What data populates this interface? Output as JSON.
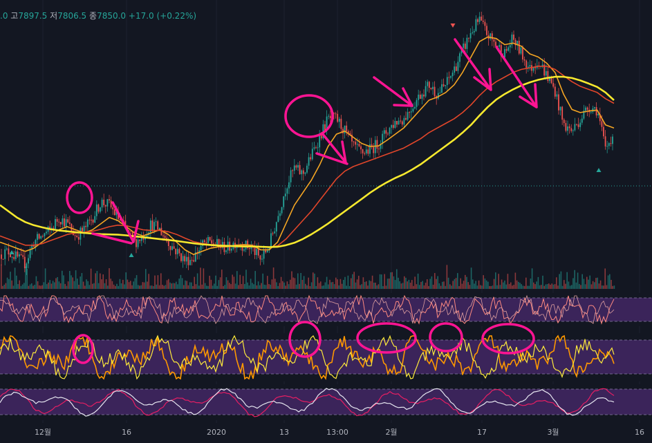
{
  "ohlc_legend": {
    "open_fragment": ".0",
    "high_label": "고",
    "high_value": "7897.5",
    "low_label": "저",
    "low_value": "7806.5",
    "close_label": "종",
    "close_value": "7850.0",
    "change": "+17.0 (+0.22%)"
  },
  "chart_data": {
    "type": "line",
    "x_ticks": [
      "12월",
      "16",
      "2020",
      "13",
      "13:00",
      "2월",
      "17",
      "3월",
      "16"
    ],
    "series": [
      {
        "values": [
          7440,
          7450,
          7430,
          7410,
          7480,
          7500,
          7520,
          7560,
          7540,
          7500,
          7520,
          7560,
          7610,
          7600,
          7560,
          7520,
          7480,
          7500,
          7540,
          7520,
          7480,
          7450,
          7420,
          7430,
          7470,
          7480,
          7470,
          7460,
          7480,
          7470,
          7460,
          7420,
          7470,
          7560,
          7660,
          7720,
          7700,
          7760,
          7820,
          7880,
          7880,
          7840,
          7790,
          7770,
          7780,
          7800,
          7840,
          7870,
          7880,
          7920,
          7960,
          7990,
          7960,
          7990,
          8040,
          8100,
          8160,
          8200,
          8150,
          8120,
          8090,
          8140,
          8090,
          8040,
          8070,
          8020,
          7970,
          7860,
          7840,
          7880,
          7920,
          7910,
          7780,
          7840
        ],
        "color": "#ffffff"
      },
      {
        "values": [
          7480,
          7470,
          7460,
          7450,
          7460,
          7480,
          7500,
          7520,
          7530,
          7520,
          7510,
          7520,
          7540,
          7560,
          7550,
          7530,
          7510,
          7500,
          7510,
          7520,
          7505,
          7480,
          7455,
          7440,
          7450,
          7460,
          7465,
          7465,
          7470,
          7472,
          7470,
          7455,
          7455,
          7480,
          7540,
          7600,
          7640,
          7680,
          7730,
          7790,
          7830,
          7840,
          7820,
          7800,
          7790,
          7792,
          7810,
          7830,
          7850,
          7880,
          7910,
          7940,
          7950,
          7965,
          7990,
          8030,
          8080,
          8130,
          8145,
          8140,
          8120,
          8125,
          8115,
          8090,
          8080,
          8060,
          8030,
          7960,
          7910,
          7900,
          7905,
          7908,
          7860,
          7850
        ],
        "color": "#f5a623"
      },
      {
        "values": [
          7500,
          7490,
          7480,
          7470,
          7470,
          7475,
          7485,
          7495,
          7505,
          7510,
          7512,
          7515,
          7522,
          7530,
          7535,
          7533,
          7527,
          7520,
          7518,
          7518,
          7514,
          7505,
          7493,
          7482,
          7476,
          7472,
          7470,
          7468,
          7468,
          7468,
          7468,
          7465,
          7463,
          7468,
          7490,
          7520,
          7550,
          7580,
          7615,
          7650,
          7685,
          7710,
          7725,
          7735,
          7745,
          7755,
          7765,
          7775,
          7785,
          7800,
          7815,
          7835,
          7850,
          7865,
          7880,
          7900,
          7925,
          7955,
          7980,
          8000,
          8015,
          8030,
          8040,
          8045,
          8050,
          8050,
          8040,
          8020,
          8000,
          7985,
          7975,
          7965,
          7945,
          7930
        ],
        "color": "#e2462a"
      },
      {
        "values": [
          7600,
          7580,
          7560,
          7545,
          7535,
          7528,
          7522,
          7518,
          7515,
          7512,
          7510,
          7508,
          7506,
          7505,
          7504,
          7502,
          7499,
          7496,
          7493,
          7490,
          7487,
          7484,
          7480,
          7476,
          7473,
          7471,
          7469,
          7468,
          7467,
          7466,
          7466,
          7465,
          7464,
          7465,
          7470,
          7478,
          7490,
          7505,
          7522,
          7540,
          7560,
          7580,
          7600,
          7620,
          7640,
          7658,
          7674,
          7688,
          7700,
          7715,
          7732,
          7752,
          7772,
          7792,
          7812,
          7835,
          7860,
          7890,
          7918,
          7942,
          7960,
          7975,
          7988,
          7998,
          8006,
          8012,
          8016,
          8016,
          8012,
          8004,
          7994,
          7983,
          7965,
          7940
        ],
        "color": "#f7e92e"
      }
    ],
    "ylim": [
      7380,
      8220
    ]
  }
}
